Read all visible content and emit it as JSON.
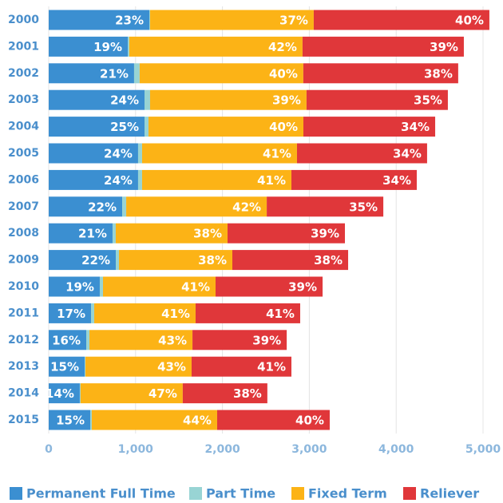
{
  "chart_data": {
    "type": "stacked-bar-horizontal",
    "categories": [
      "2000",
      "2001",
      "2002",
      "2003",
      "2004",
      "2005",
      "2006",
      "2007",
      "2008",
      "2009",
      "2010",
      "2011",
      "2012",
      "2013",
      "2014",
      "2015"
    ],
    "series": [
      {
        "name": "Permanent Full Time",
        "color": "#3b8fd1",
        "values": [
          1158,
          910,
          983,
          1103,
          1103,
          1029,
          1029,
          846,
          735,
          772,
          588,
          487,
          432,
          414,
          358,
          478
        ],
        "value_labels": [
          "23%",
          "19%",
          "21%",
          "24%",
          "25%",
          "24%",
          "24%",
          "22%",
          "21%",
          "22%",
          "19%",
          "17%",
          "16%",
          "15%",
          "14%",
          "15%"
        ]
      },
      {
        "name": "Part Time",
        "color": "#98d4d4",
        "values": [
          9,
          18,
          64,
          64,
          46,
          46,
          46,
          46,
          37,
          37,
          37,
          37,
          37,
          9,
          9,
          18
        ]
      },
      {
        "name": "Fixed Term",
        "color": "#fcb316",
        "values": [
          1884,
          1994,
          1884,
          1801,
          1783,
          1783,
          1719,
          1618,
          1287,
          1305,
          1296,
          1167,
          1186,
          1222,
          1176,
          1443
        ],
        "value_labels": [
          "37%",
          "42%",
          "40%",
          "39%",
          "40%",
          "41%",
          "41%",
          "42%",
          "38%",
          "38%",
          "41%",
          "41%",
          "43%",
          "43%",
          "47%",
          "44%"
        ]
      },
      {
        "name": "Reliever",
        "color": "#e0373a",
        "values": [
          2022,
          1857,
          1783,
          1627,
          1517,
          1498,
          1443,
          1342,
          1351,
          1333,
          1232,
          1204,
          1085,
          1149,
          974,
          1296
        ],
        "value_labels": [
          "40%",
          "39%",
          "38%",
          "35%",
          "34%",
          "34%",
          "34%",
          "35%",
          "39%",
          "38%",
          "39%",
          "41%",
          "39%",
          "41%",
          "38%",
          "40%"
        ]
      }
    ],
    "xlim": [
      0,
      5000
    ],
    "xticks": [
      0,
      {
        "value": 1000,
        "label": "1,000"
      },
      {
        "value": 2000,
        "label": "2,000"
      },
      {
        "value": 3000,
        "label": "3,000"
      },
      {
        "value": 4000,
        "label": "4,000"
      },
      {
        "value": 5000,
        "label": "5,000"
      }
    ],
    "grid": true,
    "legend": "bottom"
  }
}
